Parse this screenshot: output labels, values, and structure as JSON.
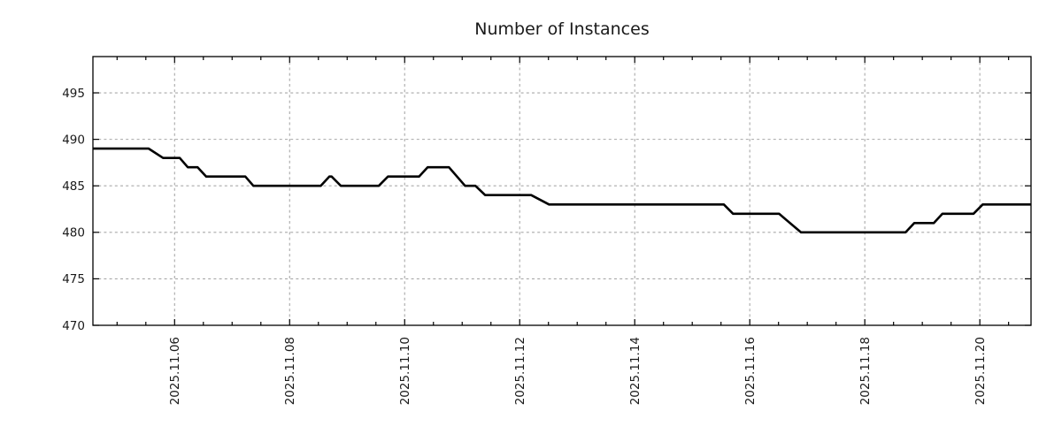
{
  "chart_data": {
    "type": "line",
    "title": "Number of Instances",
    "xlabel": "",
    "ylabel": "",
    "grid": "dashed",
    "legend": "none",
    "x_axis": {
      "unit": "decimal day of November 2025",
      "range_days": [
        4.58,
        20.89
      ],
      "tick_days": [
        6,
        8,
        10,
        12,
        14,
        16,
        18,
        20
      ],
      "tick_labels": [
        "2025.11.06",
        "2025.11.08",
        "2025.11.10",
        "2025.11.12",
        "2025.11.14",
        "2025.11.16",
        "2025.11.18",
        "2025.11.20"
      ],
      "minor_tick_step_days": 0.5
    },
    "y_axis": {
      "range": [
        470,
        498.9
      ],
      "ticks": [
        470,
        475,
        480,
        485,
        490,
        495
      ],
      "tick_labels": [
        "470",
        "475",
        "480",
        "485",
        "490",
        "495"
      ]
    },
    "series": [
      {
        "name": "number-of-instances",
        "color": "#000000",
        "line_width": 2.6,
        "points": [
          [
            4.58,
            489
          ],
          [
            5.55,
            489
          ],
          [
            5.8,
            488
          ],
          [
            6.09,
            488
          ],
          [
            6.23,
            487
          ],
          [
            6.4,
            487
          ],
          [
            6.55,
            486
          ],
          [
            7.23,
            486
          ],
          [
            7.37,
            485
          ],
          [
            8.54,
            485
          ],
          [
            8.69,
            486
          ],
          [
            8.73,
            486
          ],
          [
            8.89,
            485
          ],
          [
            9.55,
            485
          ],
          [
            9.71,
            486
          ],
          [
            10.25,
            486
          ],
          [
            10.4,
            487
          ],
          [
            10.77,
            487
          ],
          [
            11.05,
            485
          ],
          [
            11.23,
            485
          ],
          [
            11.4,
            484
          ],
          [
            12.2,
            484
          ],
          [
            12.51,
            483
          ],
          [
            15.55,
            483
          ],
          [
            15.71,
            482
          ],
          [
            16.51,
            482
          ],
          [
            16.89,
            480
          ],
          [
            18.71,
            480
          ],
          [
            18.86,
            481
          ],
          [
            19.2,
            481
          ],
          [
            19.35,
            482
          ],
          [
            19.89,
            482
          ],
          [
            20.05,
            483
          ],
          [
            20.89,
            483
          ]
        ]
      }
    ],
    "colors": {
      "line": "#000000",
      "grid": "#a8a8a8",
      "axis": "#000000",
      "text": "#1a1a1a",
      "background": "#ffffff"
    }
  }
}
